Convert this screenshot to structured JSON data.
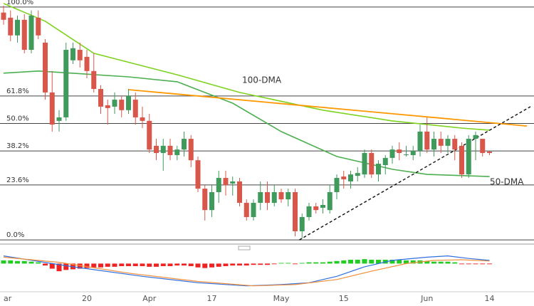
{
  "chart_data": {
    "type": "candlestick",
    "categories": [
      "ar",
      null,
      null,
      null,
      null,
      null,
      null,
      null,
      null,
      null,
      null,
      null,
      "20",
      null,
      null,
      null,
      null,
      null,
      null,
      null,
      null,
      "Apr",
      null,
      null,
      null,
      null,
      null,
      null,
      null,
      null,
      "17",
      null,
      null,
      null,
      null,
      null,
      null,
      null,
      null,
      null,
      "May",
      null,
      null,
      null,
      null,
      null,
      null,
      null,
      null,
      "15",
      null,
      null,
      null,
      null,
      null,
      null,
      null,
      null,
      null,
      null,
      null,
      "Jun",
      null,
      null,
      null,
      null,
      null,
      null,
      null,
      null,
      "14"
    ],
    "open": [
      97.6,
      95.4,
      87.8,
      94.5,
      81.6,
      95.4,
      84.7,
      63.3,
      51.1,
      52.6,
      77.1,
      81.6,
      78.6,
      72.5,
      64.8,
      57.8,
      57.2,
      60.2,
      55.7,
      60.2,
      52.6,
      51.1,
      40.4,
      37.3,
      40.4,
      36.4,
      38.8,
      43.4,
      34.2,
      22.0,
      12.8,
      20.5,
      26.6,
      24.2,
      25.1,
      15.9,
      9.8,
      15.9,
      20.5,
      15.9,
      20.5,
      17.4,
      20.5,
      3.7,
      9.8,
      14.4,
      13.8,
      12.8,
      20.5,
      27.2,
      25.1,
      27.5,
      28.1,
      37.3,
      28.1,
      32.1,
      35.2,
      38.8,
      36.4,
      36.4,
      38.2,
      46.5,
      38.8,
      43.4,
      40.4,
      43.4,
      40.4,
      28.1,
      43.4,
      43.4,
      37.9
    ],
    "high": [
      100.6,
      98.5,
      96.3,
      96.9,
      98.5,
      98.5,
      86.2,
      72.5,
      55.7,
      84.7,
      84.7,
      84.7,
      81.6,
      80.1,
      66.4,
      60.2,
      63.3,
      61.8,
      64.8,
      63.3,
      57.2,
      54.1,
      43.4,
      43.4,
      43.4,
      40.4,
      46.5,
      45.0,
      35.8,
      23.5,
      23.5,
      29.7,
      29.7,
      27.2,
      26.6,
      17.4,
      17.4,
      25.1,
      25.1,
      23.5,
      22.0,
      22.0,
      22.0,
      11.3,
      15.9,
      15.9,
      17.4,
      23.5,
      28.1,
      29.7,
      29.7,
      31.2,
      38.8,
      38.8,
      34.2,
      36.4,
      40.4,
      41.9,
      40.4,
      40.4,
      49.5,
      52.6,
      46.5,
      46.5,
      45.0,
      45.0,
      41.9,
      45.0,
      46.5,
      43.4,
      38.2
    ],
    "low": [
      92.4,
      85.3,
      84.7,
      80.1,
      80.1,
      86.2,
      60.2,
      46.5,
      46.5,
      51.1,
      75.5,
      74.0,
      69.4,
      63.3,
      54.1,
      49.5,
      54.1,
      52.6,
      54.1,
      49.5,
      48.0,
      37.3,
      34.2,
      29.7,
      34.2,
      34.2,
      35.8,
      31.2,
      20.5,
      8.3,
      9.8,
      15.9,
      19.0,
      19.0,
      14.4,
      8.3,
      8.3,
      12.8,
      12.8,
      14.4,
      15.9,
      14.4,
      1.5,
      0.6,
      8.3,
      11.3,
      11.3,
      11.3,
      17.4,
      22.0,
      22.0,
      25.1,
      26.6,
      26.6,
      25.1,
      28.1,
      32.7,
      34.2,
      35.8,
      34.2,
      35.8,
      37.3,
      35.8,
      37.3,
      37.3,
      34.2,
      26.6,
      26.6,
      34.2,
      35.8,
      36.4
    ],
    "close": [
      94.5,
      87.8,
      94.5,
      81.6,
      96.3,
      87.8,
      63.3,
      49.5,
      52.6,
      81.6,
      82.3,
      77.1,
      72.5,
      64.8,
      57.2,
      56.6,
      60.2,
      55.7,
      61.8,
      52.6,
      51.1,
      38.8,
      37.3,
      40.4,
      36.4,
      38.8,
      43.4,
      34.2,
      22.0,
      12.8,
      20.5,
      26.6,
      23.5,
      25.1,
      15.9,
      9.8,
      15.9,
      20.5,
      15.9,
      20.5,
      17.4,
      20.5,
      3.7,
      9.8,
      14.4,
      12.8,
      15.0,
      20.5,
      26.6,
      26.0,
      28.1,
      28.7,
      37.3,
      28.1,
      32.7,
      35.2,
      38.8,
      37.3,
      36.7,
      38.2,
      46.5,
      38.8,
      43.4,
      40.4,
      43.4,
      38.8,
      28.1,
      43.4,
      45.0,
      37.3,
      37.3
    ],
    "up_color": "#3f9a5b",
    "down_color": "#d9574a",
    "ylim": [
      -1.5,
      103
    ],
    "yticks": [
      {
        "value": 100,
        "label": "100.0%"
      },
      {
        "value": 61.8,
        "label": "61.8%"
      },
      {
        "value": 50,
        "label": "50.0%"
      },
      {
        "value": 38.2,
        "label": "38.2%"
      },
      {
        "value": 23.6,
        "label": "23.6%"
      },
      {
        "value": 0,
        "label": "0.0%"
      }
    ],
    "moving_averages": [
      {
        "name": "100-DMA",
        "color": "#7ed321",
        "x": [
          0,
          6,
          13,
          25,
          34,
          46,
          56,
          66,
          70
        ],
        "values": [
          101.5,
          93.9,
          80.1,
          70.9,
          63.3,
          55.7,
          51.1,
          48.0,
          47.1
        ]
      },
      {
        "name": "50-DMA",
        "color": "#4caf50",
        "x": [
          0,
          5,
          18,
          25,
          33,
          40,
          48,
          56,
          61,
          70
        ],
        "values": [
          71.6,
          72.5,
          70.0,
          67.9,
          58.7,
          46.5,
          35.8,
          30.3,
          28.1,
          27.2
        ]
      }
    ],
    "trendlines": [
      {
        "color": "#ff9800",
        "dashed": false,
        "x": [
          18,
          75.4
        ],
        "values": [
          64.5,
          48.9
        ]
      },
      {
        "color": "#111111",
        "dashed": true,
        "x": [
          42.6,
          75.9
        ],
        "values": [
          0,
          57.2
        ]
      }
    ],
    "macd": {
      "ylim": [
        -42,
        25
      ],
      "histogram": [
        5,
        5,
        4,
        4,
        3,
        2,
        -3,
        -8,
        -12,
        -10,
        -9,
        -8,
        -7,
        -6,
        -6,
        -5,
        -5,
        -4,
        -4,
        -4,
        -4,
        -5,
        -5,
        -4,
        -4,
        -3,
        -3,
        -4,
        -6,
        -7,
        -6,
        -5,
        -4,
        -3,
        -3,
        -3,
        -2,
        -2,
        -2,
        -1,
        1,
        1,
        -1,
        1,
        2,
        2,
        2,
        3,
        4,
        5,
        6,
        6,
        7,
        6,
        6,
        6,
        6,
        6,
        5,
        5,
        5,
        4,
        3,
        3,
        3,
        2,
        -1,
        -1,
        -1,
        -1,
        -1
      ],
      "up_color": "#22cc22",
      "down_color": "#ee2222",
      "lines": [
        {
          "color": "#2f6fe0",
          "x": [
            0,
            10,
            20,
            28,
            35,
            40,
            44,
            48,
            52,
            56,
            61,
            64,
            67,
            70
          ],
          "values": [
            12,
            -5,
            -20,
            -30,
            -35,
            -33,
            -30,
            -20,
            -5,
            5,
            10,
            12,
            8,
            5
          ]
        },
        {
          "color": "#f0903c",
          "x": [
            0,
            8,
            18,
            28,
            36,
            42,
            48,
            53,
            58,
            62,
            66,
            70
          ],
          "values": [
            10,
            2,
            -15,
            -28,
            -35,
            -33,
            -25,
            -12,
            0,
            5,
            6,
            4
          ]
        }
      ]
    }
  }
}
